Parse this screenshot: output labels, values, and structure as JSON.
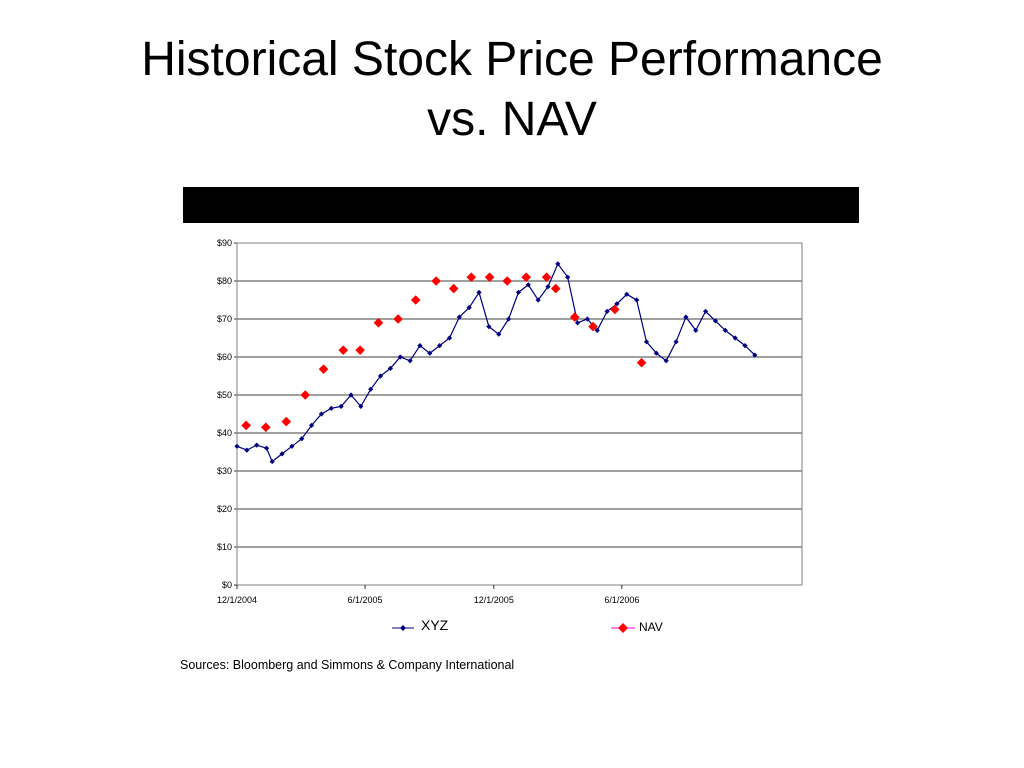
{
  "slide": {
    "title_line1": "Historical Stock Price Performance",
    "title_line2": "vs. NAV",
    "sources": "Sources:  Bloomberg and Simmons & Company International",
    "bar_color": "#000000"
  },
  "chart_data": {
    "type": "line",
    "title": "",
    "xlabel": "",
    "ylabel": "",
    "x_ticks": [
      "12/1/2004",
      "6/1/2005",
      "12/1/2005",
      "6/1/2006"
    ],
    "x_range": [
      "12/1/2004",
      "2/12/2007"
    ],
    "y_ticks": [
      "$0",
      "$10",
      "$20",
      "$30",
      "$40",
      "$50",
      "$60",
      "$70",
      "$80",
      "$90"
    ],
    "ylim": [
      0,
      90
    ],
    "grid": "horizontal",
    "legend_position": "bottom",
    "series": [
      {
        "name": "XYZ",
        "color": "#000080",
        "marker": "diamond",
        "points": [
          [
            "12/1/2004",
            36.5
          ],
          [
            "12/15/2004",
            35.5
          ],
          [
            "12/29/2004",
            36.8
          ],
          [
            "1/12/2005",
            36.0
          ],
          [
            "1/20/2005",
            32.5
          ],
          [
            "2/3/2005",
            34.5
          ],
          [
            "2/17/2005",
            36.5
          ],
          [
            "3/3/2005",
            38.5
          ],
          [
            "3/17/2005",
            42.0
          ],
          [
            "3/31/2005",
            45.0
          ],
          [
            "4/14/2005",
            46.5
          ],
          [
            "4/28/2005",
            47.0
          ],
          [
            "5/12/2005",
            50.0
          ],
          [
            "5/26/2005",
            47.0
          ],
          [
            "6/9/2005",
            51.5
          ],
          [
            "6/23/2005",
            55.0
          ],
          [
            "7/7/2005",
            57.0
          ],
          [
            "7/21/2005",
            60.0
          ],
          [
            "8/4/2005",
            59.0
          ],
          [
            "8/18/2005",
            63.0
          ],
          [
            "9/1/2005",
            61.0
          ],
          [
            "9/15/2005",
            63.0
          ],
          [
            "9/29/2005",
            65.0
          ],
          [
            "10/13/2005",
            70.5
          ],
          [
            "10/27/2005",
            73.0
          ],
          [
            "11/10/2005",
            77.0
          ],
          [
            "11/24/2005",
            68.0
          ],
          [
            "12/8/2005",
            66.0
          ],
          [
            "12/22/2005",
            70.0
          ],
          [
            "1/5/2006",
            77.0
          ],
          [
            "1/19/2006",
            79.0
          ],
          [
            "2/2/2006",
            75.0
          ],
          [
            "2/16/2006",
            78.5
          ],
          [
            "3/2/2006",
            84.5
          ],
          [
            "3/16/2006",
            81.0
          ],
          [
            "3/30/2006",
            69.0
          ],
          [
            "4/13/2006",
            70.0
          ],
          [
            "4/27/2006",
            67.0
          ],
          [
            "5/11/2006",
            72.0
          ],
          [
            "5/25/2006",
            74.0
          ],
          [
            "6/8/2006",
            76.5
          ],
          [
            "6/22/2006",
            75.0
          ],
          [
            "7/6/2006",
            64.0
          ],
          [
            "7/20/2006",
            61.0
          ],
          [
            "8/3/2006",
            59.0
          ],
          [
            "8/17/2006",
            64.0
          ],
          [
            "8/31/2006",
            70.5
          ],
          [
            "9/14/2006",
            67.0
          ],
          [
            "9/28/2006",
            72.0
          ],
          [
            "10/12/2006",
            69.5
          ],
          [
            "10/26/2006",
            67.0
          ],
          [
            "11/9/2006",
            65.0
          ],
          [
            "11/23/2006",
            63.0
          ],
          [
            "12/7/2006",
            60.5
          ]
        ]
      },
      {
        "name": "NAV",
        "color": "#ff0000",
        "marker": "diamond",
        "points": [
          [
            "12/14/2004",
            42.0
          ],
          [
            "1/11/2005",
            41.5
          ],
          [
            "2/9/2005",
            43.0
          ],
          [
            "3/8/2005",
            50.0
          ],
          [
            "4/3/2005",
            56.8
          ],
          [
            "5/1/2005",
            61.8
          ],
          [
            "5/25/2005",
            61.8
          ],
          [
            "6/20/2005",
            69.0
          ],
          [
            "7/18/2005",
            70.0
          ],
          [
            "8/12/2005",
            75.0
          ],
          [
            "9/10/2005",
            80.0
          ],
          [
            "10/5/2005",
            78.0
          ],
          [
            "10/30/2005",
            81.0
          ],
          [
            "11/25/2005",
            81.0
          ],
          [
            "12/20/2005",
            80.0
          ],
          [
            "1/16/2006",
            81.0
          ],
          [
            "2/14/2006",
            81.0
          ],
          [
            "2/27/2006",
            78.0
          ],
          [
            "3/26/2006",
            70.5
          ],
          [
            "4/21/2006",
            68.0
          ],
          [
            "5/22/2006",
            72.5
          ],
          [
            "6/29/2006",
            58.5
          ]
        ]
      }
    ]
  }
}
